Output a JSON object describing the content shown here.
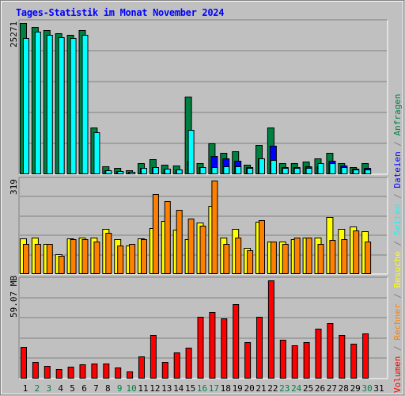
{
  "title": "Tages-Statistik im Monat November 2024",
  "legend": [
    {
      "label": "Volumen",
      "color": "#ff0000"
    },
    {
      "label": " / ",
      "color": "#808080"
    },
    {
      "label": "Rechner",
      "color": "#ff8000"
    },
    {
      "label": " / ",
      "color": "#808080"
    },
    {
      "label": "Besuche",
      "color": "#ffff00"
    },
    {
      "label": " / ",
      "color": "#808080"
    },
    {
      "label": "Seiten",
      "color": "#00ffff"
    },
    {
      "label": " / ",
      "color": "#808080"
    },
    {
      "label": "Dateien",
      "color": "#0000ff"
    },
    {
      "label": " / ",
      "color": "#808080"
    },
    {
      "label": "Anfragen",
      "color": "#008040"
    }
  ],
  "chart_data": [
    {
      "type": "bar",
      "panel": "top",
      "ymax_label": "25271",
      "ylim": [
        0,
        25271
      ],
      "categories": [
        "1",
        "2",
        "3",
        "4",
        "5",
        "6",
        "7",
        "8",
        "9",
        "10",
        "11",
        "12",
        "13",
        "14",
        "15",
        "16",
        "17",
        "18",
        "19",
        "20",
        "21",
        "22",
        "23",
        "24",
        "25",
        "26",
        "27",
        "28",
        "29",
        "30",
        "31"
      ],
      "weekend_days": [
        "2",
        "3",
        "9",
        "10",
        "16",
        "17",
        "23",
        "24",
        "30"
      ],
      "series": [
        {
          "name": "Anfragen",
          "color": "#008040",
          "values": [
            25271,
            24600,
            24100,
            23600,
            23300,
            24100,
            7800,
            1300,
            1000,
            700,
            1800,
            2500,
            1600,
            1500,
            13000,
            1900,
            5200,
            3600,
            3900,
            1600,
            4900,
            7800,
            1800,
            1800,
            2100,
            2700,
            3600,
            1800,
            1200,
            1800,
            0
          ]
        },
        {
          "name": "Dateien",
          "color": "#0000ff",
          "values": [
            0,
            0,
            0,
            0,
            0,
            0,
            0,
            600,
            500,
            400,
            1000,
            1200,
            900,
            800,
            2200,
            1200,
            3100,
            2700,
            2300,
            1200,
            2700,
            4700,
            1200,
            1200,
            1300,
            1300,
            2200,
            1400,
            900,
            1100,
            0
          ]
        },
        {
          "name": "Seiten",
          "color": "#00ffff",
          "values": [
            22700,
            23800,
            23300,
            22900,
            22700,
            23300,
            7000,
            600,
            500,
            400,
            1000,
            1200,
            900,
            800,
            7400,
            1200,
            1200,
            1300,
            1300,
            1100,
            2600,
            2400,
            1100,
            1100,
            1100,
            1900,
            1800,
            1200,
            800,
            800,
            0
          ]
        }
      ]
    },
    {
      "type": "bar",
      "panel": "middle",
      "ymax_label": "319",
      "ylim": [
        0,
        319
      ],
      "categories": [
        "1",
        "2",
        "3",
        "4",
        "5",
        "6",
        "7",
        "8",
        "9",
        "10",
        "11",
        "12",
        "13",
        "14",
        "15",
        "16",
        "17",
        "18",
        "19",
        "20",
        "21",
        "22",
        "23",
        "24",
        "25",
        "26",
        "27",
        "28",
        "29",
        "30",
        "31"
      ],
      "series": [
        {
          "name": "Besuche",
          "color": "#ffff00",
          "values": [
            122,
            125,
            104,
            68,
            122,
            125,
            125,
            154,
            118,
            97,
            122,
            157,
            180,
            152,
            118,
            177,
            232,
            125,
            153,
            88,
            178,
            112,
            110,
            120,
            125,
            125,
            195,
            153,
            162,
            146,
            0
          ]
        },
        {
          "name": "Rechner",
          "color": "#ff8000",
          "values": [
            104,
            104,
            104,
            62,
            120,
            120,
            110,
            140,
            98,
            102,
            120,
            272,
            250,
            220,
            190,
            165,
            319,
            102,
            125,
            80,
            185,
            110,
            104,
            125,
            125,
            104,
            115,
            120,
            150,
            110,
            0
          ]
        }
      ]
    },
    {
      "type": "bar",
      "panel": "bottom",
      "ymax_label": "59.07 MB",
      "ylim": [
        0,
        59.07
      ],
      "unit": "MB",
      "categories": [
        "1",
        "2",
        "3",
        "4",
        "5",
        "6",
        "7",
        "8",
        "9",
        "10",
        "11",
        "12",
        "13",
        "14",
        "15",
        "16",
        "17",
        "18",
        "19",
        "20",
        "21",
        "22",
        "23",
        "24",
        "25",
        "26",
        "27",
        "28",
        "29",
        "30",
        "31"
      ],
      "series": [
        {
          "name": "Volumen",
          "color": "#ff0000",
          "values": [
            19.0,
            10.0,
            7.5,
            5.5,
            7.0,
            8.5,
            9.0,
            9.0,
            6.5,
            4.5,
            13.5,
            26.0,
            10.0,
            15.5,
            18.5,
            37.0,
            40.0,
            36.0,
            45.0,
            22.0,
            37.0,
            59.07,
            23.5,
            20.0,
            22.0,
            30.0,
            33.5,
            26.0,
            21.0,
            27.0,
            0
          ]
        }
      ]
    }
  ]
}
